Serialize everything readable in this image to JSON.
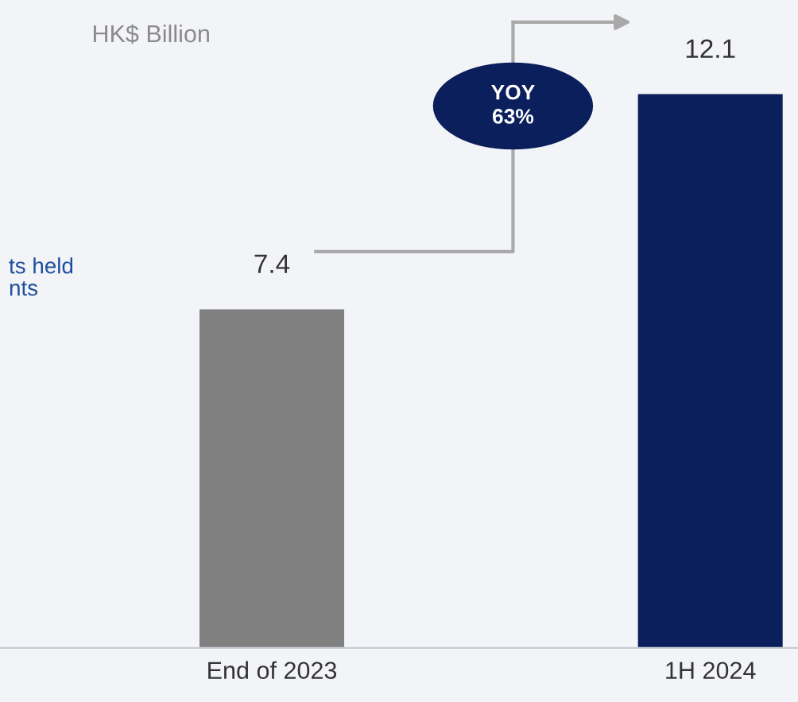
{
  "chart_data": {
    "type": "bar",
    "title": "HK$ Billion",
    "categories": [
      "End of 2023",
      "1H 2024"
    ],
    "values": [
      7.4,
      12.1
    ],
    "colors": [
      "#808080",
      "#0b1f5c"
    ],
    "data_labels": true,
    "annotations": [
      "YOY\n63%",
      "ts held\nnts"
    ]
  }
}
